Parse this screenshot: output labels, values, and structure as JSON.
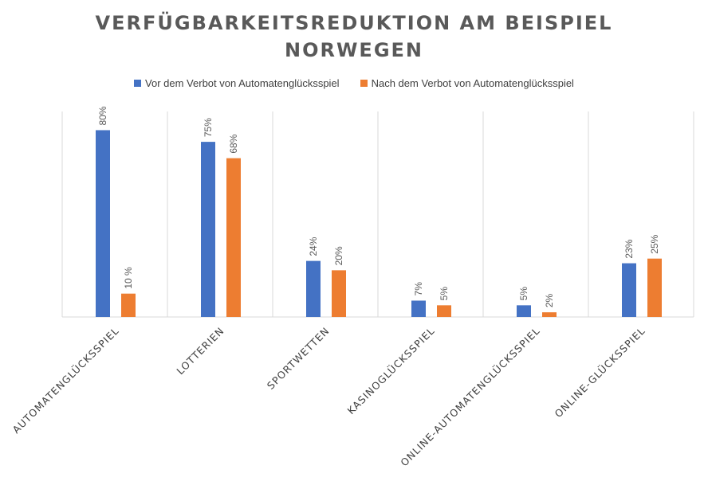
{
  "chart_data": {
    "type": "bar",
    "title_line1": "VERFÜGBARKEITSREDUKTION AM BEISPIEL",
    "title_line2": "NORWEGEN",
    "categories": [
      "AUTOMATENGLÜCKSSPIEL",
      "LOTTERIEN",
      "SPORTWETTEN",
      "KASINOGLÜCKSSPIEL",
      "ONLINE-AUTOMATENGLÜCKSSPIEL",
      "ONLINE-GLÜCKSSPIEL"
    ],
    "series": [
      {
        "name": "Vor dem Verbot von Automatenglücksspiel",
        "color": "#4472C4",
        "values": [
          80,
          75,
          24,
          7,
          5,
          23
        ],
        "labels": [
          "80%",
          "75%",
          "24%",
          "7%",
          "5%",
          "23%"
        ]
      },
      {
        "name": "Nach dem Verbot von Automatenglücksspiel",
        "color": "#ED7D31",
        "values": [
          10,
          68,
          20,
          5,
          2,
          25
        ],
        "labels": [
          "10 %",
          "68%",
          "20%",
          "5%",
          "2%",
          "25%"
        ]
      }
    ],
    "ylim": [
      0,
      88
    ],
    "legend_position": "top",
    "grid": "vertical separators"
  }
}
